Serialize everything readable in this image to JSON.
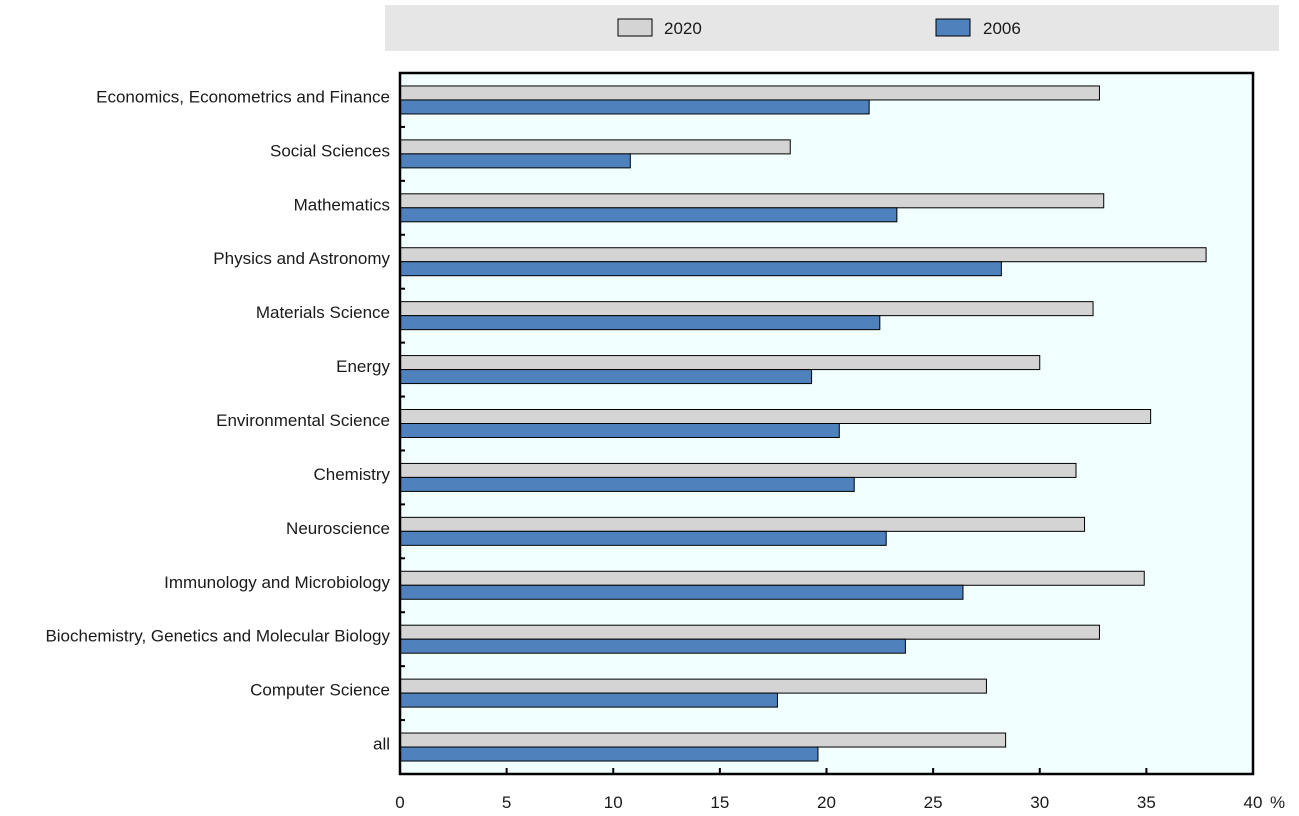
{
  "chart_data": {
    "type": "bar",
    "orientation": "horizontal",
    "title": "",
    "xlabel": "",
    "ylabel": "",
    "x_unit": "%",
    "xlim": [
      0,
      40
    ],
    "x_ticks": [
      "0",
      "5",
      "10",
      "15",
      "20",
      "25",
      "30",
      "35",
      "40"
    ],
    "legend_position": "top",
    "grid": false,
    "categories": [
      "Economics, Econometrics and Finance",
      "Social Sciences",
      "Mathematics",
      "Physics and Astronomy",
      "Materials Science",
      "Energy",
      "Environmental Science",
      "Chemistry",
      "Neuroscience",
      "Immunology and Microbiology",
      "Biochemistry, Genetics and Molecular Biology",
      "Computer Science",
      "all"
    ],
    "series": [
      {
        "name": "2020",
        "color": "#d4d4d4",
        "values": [
          32.8,
          18.3,
          33.0,
          37.8,
          32.5,
          30.0,
          35.2,
          31.7,
          32.1,
          34.9,
          32.8,
          27.5,
          28.4
        ]
      },
      {
        "name": "2006",
        "color": "#4f81bd",
        "values": [
          22.0,
          10.8,
          23.3,
          28.2,
          22.5,
          19.3,
          20.6,
          21.3,
          22.8,
          26.4,
          23.7,
          17.7,
          19.6
        ]
      }
    ]
  }
}
